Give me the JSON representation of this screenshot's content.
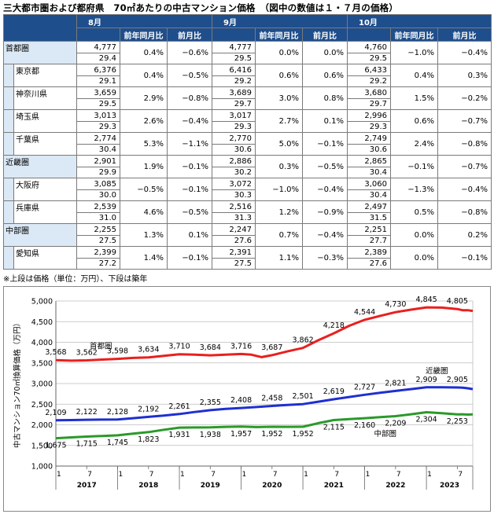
{
  "title": "三大都市圏および都府県　70㎡あたりの中古マンション価格　（図中の数値は１・７月の価格）",
  "table": {
    "months": [
      "8月",
      "9月",
      "10月"
    ],
    "subheaders": [
      "前年同月比",
      "前月比"
    ],
    "rows": [
      {
        "name": "首都圏",
        "type": "region",
        "cells": [
          {
            "price": "4,777",
            "age": "29.4",
            "yoy": "0.4%",
            "mom": "−0.6%"
          },
          {
            "price": "4,777",
            "age": "29.5",
            "yoy": "0.0%",
            "mom": "0.0%"
          },
          {
            "price": "4,760",
            "age": "29.5",
            "yoy": "−1.0%",
            "mom": "−0.4%"
          }
        ]
      },
      {
        "name": "東京都",
        "type": "pref",
        "cells": [
          {
            "price": "6,376",
            "age": "29.1",
            "yoy": "0.4%",
            "mom": "−0.5%"
          },
          {
            "price": "6,416",
            "age": "29.2",
            "yoy": "0.6%",
            "mom": "0.6%"
          },
          {
            "price": "6,433",
            "age": "29.2",
            "yoy": "0.4%",
            "mom": "0.3%"
          }
        ]
      },
      {
        "name": "神奈川県",
        "type": "pref",
        "cells": [
          {
            "price": "3,659",
            "age": "29.5",
            "yoy": "2.9%",
            "mom": "−0.8%"
          },
          {
            "price": "3,689",
            "age": "29.7",
            "yoy": "3.0%",
            "mom": "0.8%"
          },
          {
            "price": "3,680",
            "age": "29.7",
            "yoy": "1.5%",
            "mom": "−0.2%"
          }
        ]
      },
      {
        "name": "埼玉県",
        "type": "pref",
        "cells": [
          {
            "price": "3,013",
            "age": "29.3",
            "yoy": "2.6%",
            "mom": "−0.4%"
          },
          {
            "price": "3,017",
            "age": "29.3",
            "yoy": "2.7%",
            "mom": "0.1%"
          },
          {
            "price": "2,996",
            "age": "29.3",
            "yoy": "0.6%",
            "mom": "−0.7%"
          }
        ]
      },
      {
        "name": "千葉県",
        "type": "pref",
        "cells": [
          {
            "price": "2,774",
            "age": "30.4",
            "yoy": "5.3%",
            "mom": "−1.1%"
          },
          {
            "price": "2,770",
            "age": "30.6",
            "yoy": "5.0%",
            "mom": "−0.1%"
          },
          {
            "price": "2,749",
            "age": "30.6",
            "yoy": "2.4%",
            "mom": "−0.8%"
          }
        ]
      },
      {
        "name": "近畿圏",
        "type": "region",
        "cells": [
          {
            "price": "2,901",
            "age": "29.9",
            "yoy": "1.9%",
            "mom": "−0.1%"
          },
          {
            "price": "2,886",
            "age": "30.2",
            "yoy": "0.3%",
            "mom": "−0.5%"
          },
          {
            "price": "2,865",
            "age": "30.4",
            "yoy": "−0.1%",
            "mom": "−0.7%"
          }
        ]
      },
      {
        "name": "大阪府",
        "type": "pref",
        "cells": [
          {
            "price": "3,085",
            "age": "30.0",
            "yoy": "−0.5%",
            "mom": "−0.1%"
          },
          {
            "price": "3,072",
            "age": "30.3",
            "yoy": "−1.0%",
            "mom": "−0.4%"
          },
          {
            "price": "3,060",
            "age": "30.4",
            "yoy": "−1.3%",
            "mom": "−0.4%"
          }
        ]
      },
      {
        "name": "兵庫県",
        "type": "pref",
        "cells": [
          {
            "price": "2,539",
            "age": "31.0",
            "yoy": "4.6%",
            "mom": "−0.5%"
          },
          {
            "price": "2,516",
            "age": "31.3",
            "yoy": "1.2%",
            "mom": "−0.9%"
          },
          {
            "price": "2,497",
            "age": "31.5",
            "yoy": "0.5%",
            "mom": "−0.8%"
          }
        ]
      },
      {
        "name": "中部圏",
        "type": "region",
        "cells": [
          {
            "price": "2,255",
            "age": "27.5",
            "yoy": "1.3%",
            "mom": "0.1%"
          },
          {
            "price": "2,247",
            "age": "27.6",
            "yoy": "0.7%",
            "mom": "−0.4%"
          },
          {
            "price": "2,251",
            "age": "27.7",
            "yoy": "0.0%",
            "mom": "0.2%"
          }
        ]
      },
      {
        "name": "愛知県",
        "type": "pref",
        "cells": [
          {
            "price": "2,399",
            "age": "27.2",
            "yoy": "1.4%",
            "mom": "−0.1%"
          },
          {
            "price": "2,391",
            "age": "27.5",
            "yoy": "1.1%",
            "mom": "−0.3%"
          },
          {
            "price": "2,389",
            "age": "27.6",
            "yoy": "0.0%",
            "mom": "−0.1%"
          }
        ]
      }
    ]
  },
  "note": "※上段は価格（単位：万円）、下段は築年",
  "chart_data": {
    "type": "line",
    "ylabel": "中古マンション70㎡換算価格（万円）",
    "ylim": [
      1000,
      5000
    ],
    "yticks": [
      "5,000",
      "4,500",
      "4,000",
      "3,500",
      "3,000",
      "2,500",
      "2,000",
      "1,500",
      "1,000"
    ],
    "ytick_values": [
      5000,
      4500,
      4000,
      3500,
      3000,
      2500,
      2000,
      1500,
      1000
    ],
    "x_month_ticks": [
      "1",
      "7",
      "1",
      "7",
      "1",
      "7",
      "1",
      "7",
      "1",
      "7",
      "1",
      "7",
      "1",
      "7"
    ],
    "x_years": [
      "2017",
      "2018",
      "2019",
      "2020",
      "2021",
      "2022",
      "2023"
    ],
    "x_start": "2017-01",
    "x_end": "2023-10",
    "grid": true,
    "series": [
      {
        "name": "首都圏",
        "color": "#e8201e",
        "label_points": [
          [
            "2017-01",
            3568
          ],
          [
            "2017-07",
            3562
          ],
          [
            "2018-01",
            3598
          ],
          [
            "2018-07",
            3634
          ],
          [
            "2019-01",
            3710
          ],
          [
            "2019-07",
            3684
          ],
          [
            "2020-01",
            3716
          ],
          [
            "2020-07",
            3687
          ],
          [
            "2021-01",
            3862
          ],
          [
            "2021-07",
            4218
          ],
          [
            "2022-01",
            4544
          ],
          [
            "2022-07",
            4730
          ],
          [
            "2023-01",
            4845
          ],
          [
            "2023-07",
            4805
          ]
        ],
        "path_points": [
          [
            "2017-01",
            3568
          ],
          [
            "2017-04",
            3555
          ],
          [
            "2017-07",
            3562
          ],
          [
            "2017-10",
            3580
          ],
          [
            "2018-01",
            3598
          ],
          [
            "2018-04",
            3620
          ],
          [
            "2018-07",
            3634
          ],
          [
            "2018-10",
            3670
          ],
          [
            "2019-01",
            3710
          ],
          [
            "2019-04",
            3700
          ],
          [
            "2019-07",
            3684
          ],
          [
            "2019-10",
            3700
          ],
          [
            "2020-01",
            3716
          ],
          [
            "2020-03",
            3700
          ],
          [
            "2020-05",
            3640
          ],
          [
            "2020-07",
            3687
          ],
          [
            "2020-10",
            3780
          ],
          [
            "2021-01",
            3862
          ],
          [
            "2021-04",
            4050
          ],
          [
            "2021-07",
            4218
          ],
          [
            "2021-10",
            4400
          ],
          [
            "2022-01",
            4544
          ],
          [
            "2022-04",
            4640
          ],
          [
            "2022-07",
            4730
          ],
          [
            "2022-10",
            4790
          ],
          [
            "2023-01",
            4845
          ],
          [
            "2023-04",
            4840
          ],
          [
            "2023-07",
            4805
          ],
          [
            "2023-08",
            4777
          ],
          [
            "2023-09",
            4777
          ],
          [
            "2023-10",
            4760
          ]
        ]
      },
      {
        "name": "近畿圏",
        "color": "#1f2fd1",
        "label_points": [
          [
            "2017-01",
            2109
          ],
          [
            "2017-07",
            2122
          ],
          [
            "2018-01",
            2128
          ],
          [
            "2018-07",
            2192
          ],
          [
            "2019-01",
            2261
          ],
          [
            "2019-07",
            2355
          ],
          [
            "2020-01",
            2408
          ],
          [
            "2020-07",
            2458
          ],
          [
            "2021-01",
            2501
          ],
          [
            "2021-07",
            2619
          ],
          [
            "2022-01",
            2727
          ],
          [
            "2022-07",
            2821
          ],
          [
            "2023-01",
            2909
          ],
          [
            "2023-07",
            2905
          ]
        ],
        "path_points": [
          [
            "2017-01",
            2109
          ],
          [
            "2017-04",
            2115
          ],
          [
            "2017-07",
            2122
          ],
          [
            "2017-10",
            2125
          ],
          [
            "2018-01",
            2128
          ],
          [
            "2018-04",
            2160
          ],
          [
            "2018-07",
            2192
          ],
          [
            "2018-10",
            2225
          ],
          [
            "2019-01",
            2261
          ],
          [
            "2019-04",
            2310
          ],
          [
            "2019-07",
            2355
          ],
          [
            "2019-10",
            2385
          ],
          [
            "2020-01",
            2408
          ],
          [
            "2020-04",
            2430
          ],
          [
            "2020-07",
            2458
          ],
          [
            "2020-10",
            2480
          ],
          [
            "2021-01",
            2501
          ],
          [
            "2021-04",
            2560
          ],
          [
            "2021-07",
            2619
          ],
          [
            "2021-10",
            2675
          ],
          [
            "2022-01",
            2727
          ],
          [
            "2022-04",
            2775
          ],
          [
            "2022-07",
            2821
          ],
          [
            "2022-10",
            2865
          ],
          [
            "2023-01",
            2909
          ],
          [
            "2023-04",
            2910
          ],
          [
            "2023-07",
            2905
          ],
          [
            "2023-08",
            2901
          ],
          [
            "2023-09",
            2886
          ],
          [
            "2023-10",
            2865
          ]
        ]
      },
      {
        "name": "中部圏",
        "color": "#2a9a2a",
        "label_points": [
          [
            "2017-01",
            1675
          ],
          [
            "2017-07",
            1715
          ],
          [
            "2018-01",
            1745
          ],
          [
            "2018-07",
            1823
          ],
          [
            "2019-01",
            1931
          ],
          [
            "2019-07",
            1938
          ],
          [
            "2020-01",
            1957
          ],
          [
            "2020-07",
            1952
          ],
          [
            "2021-01",
            1952
          ],
          [
            "2021-07",
            2115
          ],
          [
            "2022-01",
            2160
          ],
          [
            "2022-07",
            2209
          ],
          [
            "2023-01",
            2304
          ],
          [
            "2023-07",
            2253
          ]
        ],
        "path_points": [
          [
            "2017-01",
            1675
          ],
          [
            "2017-04",
            1695
          ],
          [
            "2017-07",
            1715
          ],
          [
            "2017-10",
            1730
          ],
          [
            "2018-01",
            1745
          ],
          [
            "2018-04",
            1785
          ],
          [
            "2018-07",
            1823
          ],
          [
            "2018-10",
            1880
          ],
          [
            "2019-01",
            1931
          ],
          [
            "2019-04",
            1935
          ],
          [
            "2019-07",
            1938
          ],
          [
            "2019-10",
            1950
          ],
          [
            "2020-01",
            1957
          ],
          [
            "2020-04",
            1945
          ],
          [
            "2020-07",
            1952
          ],
          [
            "2020-10",
            1950
          ],
          [
            "2021-01",
            1952
          ],
          [
            "2021-04",
            2040
          ],
          [
            "2021-07",
            2115
          ],
          [
            "2021-10",
            2140
          ],
          [
            "2022-01",
            2160
          ],
          [
            "2022-04",
            2185
          ],
          [
            "2022-07",
            2209
          ],
          [
            "2022-10",
            2255
          ],
          [
            "2023-01",
            2304
          ],
          [
            "2023-04",
            2280
          ],
          [
            "2023-07",
            2253
          ],
          [
            "2023-08",
            2255
          ],
          [
            "2023-09",
            2247
          ],
          [
            "2023-10",
            2251
          ]
        ]
      }
    ]
  }
}
